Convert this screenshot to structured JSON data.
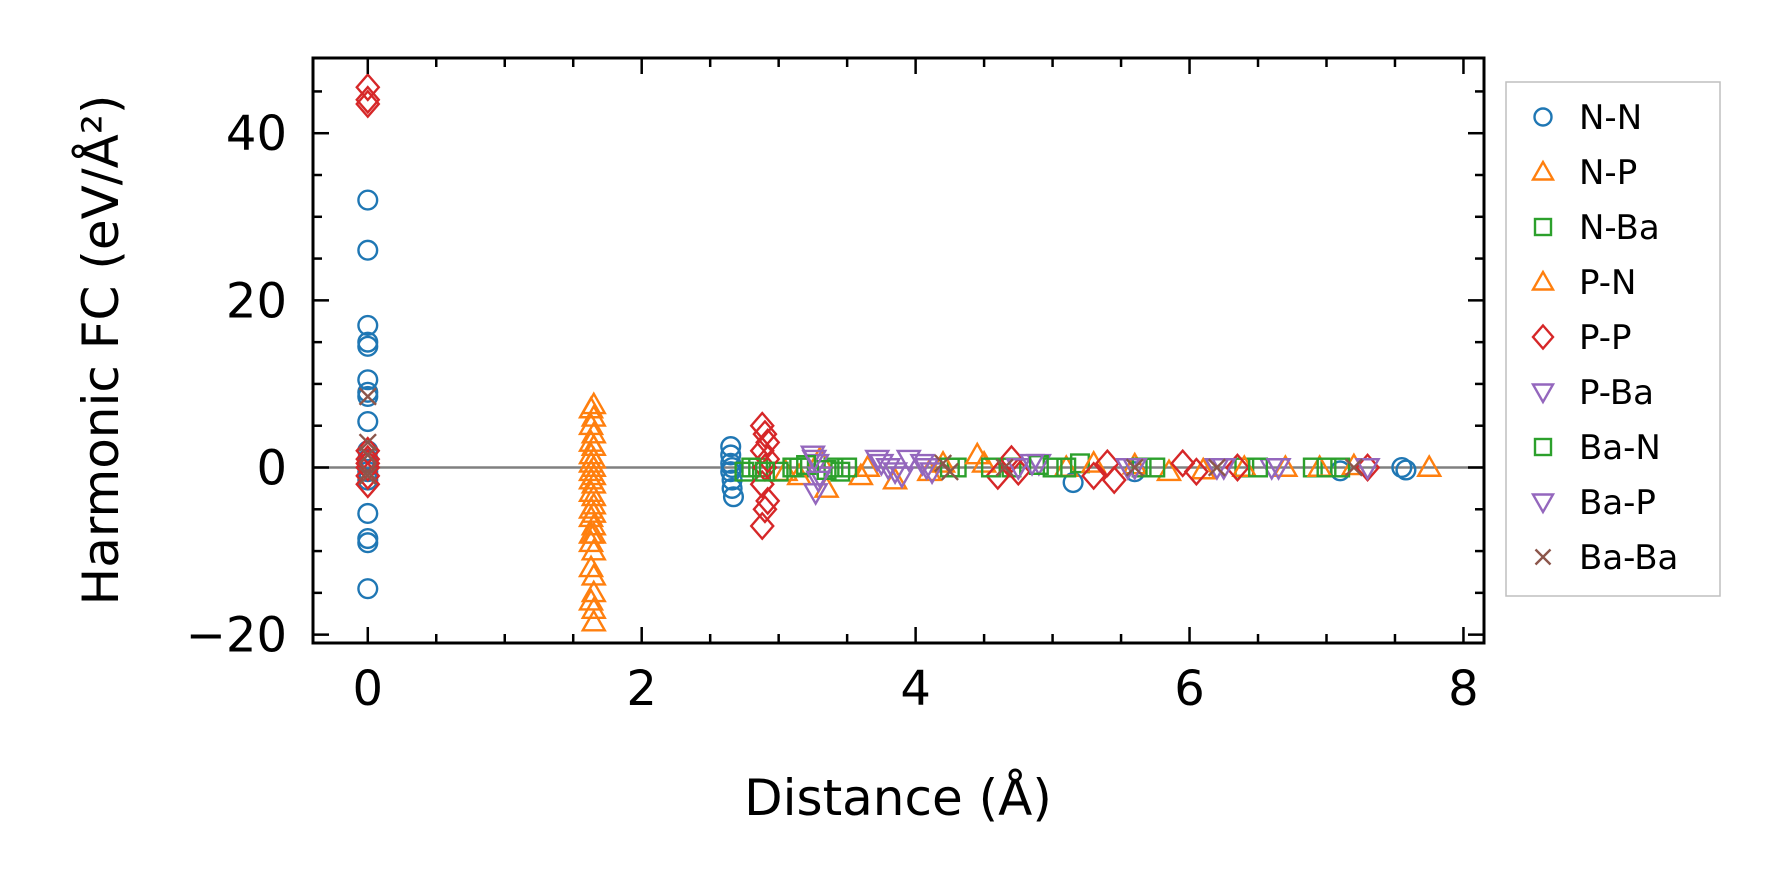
{
  "chart_data": {
    "type": "scatter",
    "title": "",
    "xlabel": "Distance (Å)",
    "ylabel": "Harmonic FC (eV/Å²)",
    "xlim": [
      -0.4,
      8.15
    ],
    "ylim": [
      -21,
      49
    ],
    "xticks": [
      0,
      2,
      4,
      6,
      8
    ],
    "yticks": [
      -20,
      0,
      20,
      40
    ],
    "xtick_labels": [
      "0",
      "2",
      "4",
      "6",
      "8"
    ],
    "ytick_labels": [
      "−20",
      "0",
      "20",
      "40"
    ],
    "zero_line": true,
    "grid": false,
    "legend_position": "outside-right",
    "series": [
      {
        "name": "N-N",
        "marker": "circle",
        "color": "#1f77b4",
        "filled": false,
        "x": [
          0,
          0,
          0,
          0,
          0,
          0,
          0,
          0,
          0,
          0,
          0,
          0,
          0,
          0,
          0,
          0,
          0,
          0,
          2.65,
          2.65,
          2.65,
          2.65,
          2.66,
          2.66,
          2.67,
          2.66,
          5.15,
          5.6,
          7.55,
          7.58,
          7.1
        ],
        "y": [
          32,
          26,
          17,
          15,
          14.5,
          10.5,
          9,
          8.5,
          5.5,
          2,
          0.5,
          -0.5,
          -1.5,
          -5.5,
          -8.5,
          -9,
          -14.5,
          1,
          2.5,
          1.5,
          0.5,
          -0.5,
          -1.5,
          -2.5,
          -3.5,
          0,
          -1.8,
          -0.5,
          0,
          -0.3,
          -0.4
        ]
      },
      {
        "name": "N-P",
        "marker": "triangle-up",
        "color": "#ff7f0e",
        "filled": false,
        "x": [
          1.65,
          1.65,
          1.65,
          1.65,
          1.65,
          1.65,
          1.65,
          1.65,
          1.65,
          1.65,
          1.65,
          1.65,
          1.65,
          1.65,
          1.65,
          1.65,
          1.65,
          1.65,
          3.05,
          3.3,
          3.6,
          4.1,
          4.5,
          5.1,
          5.6,
          6.1,
          6.7,
          7.2,
          7.75
        ],
        "y": [
          7.5,
          6,
          4,
          2.5,
          1,
          0,
          -1,
          -2,
          -3.5,
          -4.5,
          -5.5,
          -7,
          -8,
          -10,
          -13,
          -15,
          -17,
          -18.5,
          -0.5,
          1,
          -1,
          -0.5,
          0.5,
          0,
          0.3,
          -0.3,
          0,
          0.2,
          0
        ]
      },
      {
        "name": "N-Ba",
        "marker": "square",
        "color": "#2ca02c",
        "filled": false,
        "x": [
          2.75,
          2.85,
          3.0,
          3.15,
          3.4,
          3.45,
          4.3,
          4.7,
          5.0,
          5.2,
          5.65,
          6.4,
          6.9,
          7.1
        ],
        "y": [
          -0.5,
          0,
          -0.5,
          0,
          0,
          -0.5,
          0,
          0,
          0,
          0.5,
          0,
          0,
          0,
          0
        ]
      },
      {
        "name": "P-N",
        "marker": "triangle-up",
        "color": "#ff7f0e",
        "filled": false,
        "x": [
          1.63,
          1.63,
          1.63,
          1.63,
          1.63,
          1.63,
          1.63,
          1.63,
          1.63,
          1.63,
          1.63,
          1.63,
          1.63,
          1.63,
          3.15,
          3.35,
          3.65,
          3.85,
          4.2,
          4.45,
          5.3,
          5.85,
          6.4,
          6.95
        ],
        "y": [
          7,
          5,
          3,
          1.5,
          0.5,
          -0.5,
          -1.5,
          -3,
          -5,
          -6,
          -8,
          -9,
          -12,
          -16,
          -1,
          -2.5,
          0,
          -1.5,
          0.5,
          1.5,
          0.5,
          -0.5,
          0,
          0
        ]
      },
      {
        "name": "P-P",
        "marker": "diamond",
        "color": "#d62728",
        "filled": false,
        "x": [
          0,
          0,
          0,
          0,
          0,
          0,
          0,
          0,
          0,
          2.88,
          2.9,
          2.92,
          2.88,
          2.92,
          2.9,
          2.88,
          2.92,
          2.9,
          2.88,
          4.6,
          4.7,
          4.75,
          5.3,
          5.4,
          5.45,
          5.95,
          6.05,
          6.35,
          7.3
        ],
        "y": [
          45.5,
          44,
          43.5,
          2,
          1,
          0,
          -1,
          -2,
          0.5,
          5,
          4,
          3,
          2,
          1,
          0,
          -2,
          -4,
          -5,
          -7,
          -1,
          1,
          -0.5,
          -1,
          0.5,
          -1.5,
          0.5,
          -0.5,
          0,
          0
        ]
      },
      {
        "name": "P-Ba",
        "marker": "triangle-down",
        "color": "#9467bd",
        "filled": false,
        "x": [
          3.25,
          3.28,
          3.3,
          3.27,
          3.72,
          3.8,
          3.9,
          4.05,
          4.12,
          4.75,
          4.9,
          5.55,
          6.2,
          6.6,
          7.3
        ],
        "y": [
          1.5,
          0.5,
          -1,
          -3,
          1,
          0,
          -1,
          0.5,
          -0.5,
          0,
          0.5,
          0,
          0,
          0,
          0
        ]
      },
      {
        "name": "Ba-N",
        "marker": "square",
        "color": "#2ca02c",
        "filled": false,
        "x": [
          2.8,
          2.9,
          3.1,
          3.2,
          3.35,
          3.5,
          4.25,
          4.55,
          4.9,
          5.1,
          5.75,
          6.5,
          7.0
        ],
        "y": [
          0,
          -0.5,
          0,
          0.3,
          -0.3,
          0,
          0,
          0,
          0.3,
          0,
          0,
          0,
          0
        ]
      },
      {
        "name": "Ba-P",
        "marker": "triangle-down",
        "color": "#9467bd",
        "filled": false,
        "x": [
          3.26,
          3.29,
          3.75,
          3.85,
          3.95,
          4.08,
          4.85,
          5.6,
          6.25,
          6.65
        ],
        "y": [
          1,
          -1.5,
          0.5,
          -0.5,
          1,
          0,
          0.5,
          0,
          0,
          0
        ]
      },
      {
        "name": "Ba-Ba",
        "marker": "x",
        "color": "#8c564b",
        "filled": false,
        "x": [
          0,
          0,
          0,
          0,
          0,
          4.2,
          4.25,
          4.65,
          5.6,
          6.2,
          7.2
        ],
        "y": [
          8.5,
          3,
          1.5,
          -0.5,
          -1,
          0.5,
          -0.5,
          0,
          0,
          0,
          0
        ]
      }
    ]
  }
}
